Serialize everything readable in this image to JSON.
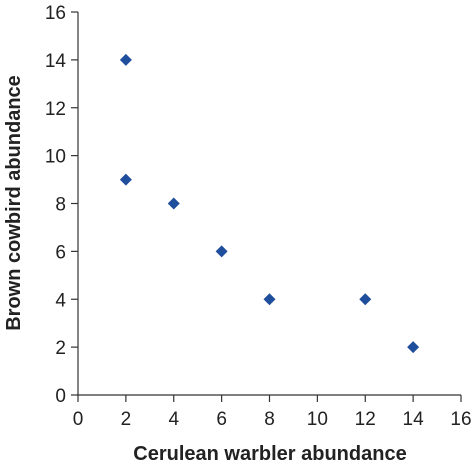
{
  "chart_data": {
    "type": "scatter",
    "title": "",
    "xlabel": "Cerulean warbler abundance",
    "ylabel": "Brown cowbird abundance",
    "xlim": [
      0,
      16
    ],
    "ylim": [
      0,
      16
    ],
    "xticks": [
      0,
      2,
      4,
      6,
      8,
      10,
      12,
      14,
      16
    ],
    "yticks": [
      0,
      2,
      4,
      6,
      8,
      10,
      12,
      14,
      16
    ],
    "grid": false,
    "legend": "none",
    "marker": "diamond",
    "color": "#1f4e9c",
    "points": [
      {
        "x": 2,
        "y": 14
      },
      {
        "x": 2,
        "y": 9
      },
      {
        "x": 4,
        "y": 8
      },
      {
        "x": 6,
        "y": 6
      },
      {
        "x": 8,
        "y": 4
      },
      {
        "x": 12,
        "y": 4
      },
      {
        "x": 14,
        "y": 2
      }
    ]
  }
}
